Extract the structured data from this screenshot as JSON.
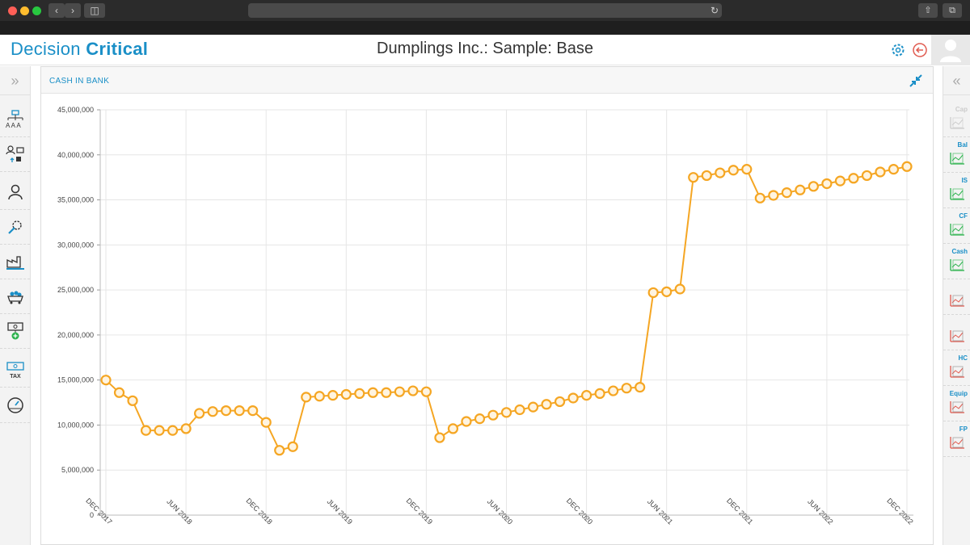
{
  "app": {
    "logo_left": "Decision",
    "logo_right": "Critical",
    "document_title": "Dumplings Inc.: Sample: Base"
  },
  "panel": {
    "title": "CASH IN BANK"
  },
  "right_rail": {
    "items": [
      "Cap",
      "Bal",
      "IS",
      "CF",
      "Cash",
      "",
      "",
      "HC",
      "Equip",
      "FP"
    ]
  },
  "left_rail": {
    "tax_label": "TAX"
  },
  "colors": {
    "brand": "#1a8fc7",
    "series": "#f5a623",
    "grid": "#e6e6e6"
  },
  "chart_data": {
    "type": "line",
    "title": "CASH IN BANK",
    "xlabel": "",
    "ylabel": "",
    "ylim": [
      0,
      45000000
    ],
    "yticks": [
      "0",
      "5,000,000",
      "10,000,000",
      "15,000,000",
      "20,000,000",
      "25,000,000",
      "30,000,000",
      "35,000,000",
      "40,000,000",
      "45,000,000"
    ],
    "xticks": [
      "DEC 2017",
      "JUN 2018",
      "DEC 2018",
      "JUN 2019",
      "DEC 2019",
      "JUN 2020",
      "DEC 2020",
      "JUN 2021",
      "DEC 2021",
      "JUN 2022",
      "DEC 2022"
    ],
    "grid": true,
    "series": [
      {
        "values": [
          15000000,
          13600000,
          12700000,
          9400000,
          9400000,
          9400000,
          9600000,
          11300000,
          11500000,
          11600000,
          11600000,
          11600000,
          10300000,
          7200000,
          7600000,
          13100000,
          13200000,
          13300000,
          13400000,
          13500000,
          13600000,
          13600000,
          13700000,
          13800000,
          13700000,
          8600000,
          9600000,
          10400000,
          10700000,
          11100000,
          11400000,
          11700000,
          12000000,
          12300000,
          12600000,
          13000000,
          13300000,
          13500000,
          13800000,
          14100000,
          14200000,
          24700000,
          24800000,
          25100000,
          37500000,
          37700000,
          38000000,
          38300000,
          38400000,
          35200000,
          35500000,
          35800000,
          36100000,
          36500000,
          36800000,
          37100000,
          37400000,
          37700000,
          38100000,
          38400000,
          38700000
        ]
      }
    ]
  }
}
